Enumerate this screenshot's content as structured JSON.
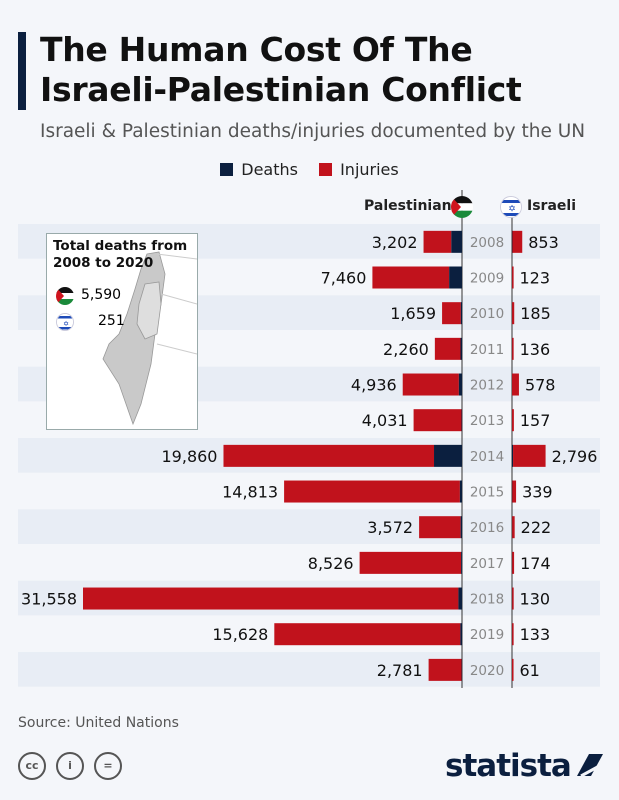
{
  "title": "The Human Cost Of The Israeli-Palestinian Conflict",
  "title_line1": "The Human Cost Of The",
  "title_line2": "Israeli-Palestinian Conflict",
  "subtitle": "Israeli & Palestinian deaths/injuries documented by the UN",
  "legend": {
    "deaths": "Deaths",
    "injuries": "Injuries"
  },
  "colors": {
    "deaths": "#0b1f3f",
    "injuries": "#c1121c",
    "band": "#e8edf5"
  },
  "headers": {
    "palestinian": "Palestinian",
    "israeli": "Israeli"
  },
  "inset": {
    "title_line1": "Total deaths from",
    "title_line2": "2008 to 2020",
    "palestinian_total": "5,590",
    "israeli_total": "251"
  },
  "chart_data": {
    "type": "bar",
    "orientation": "horizontal-diverging",
    "stacked": true,
    "categories": [
      "2008",
      "2009",
      "2010",
      "2011",
      "2012",
      "2013",
      "2014",
      "2015",
      "2016",
      "2017",
      "2018",
      "2019",
      "2020"
    ],
    "palestinian": {
      "labels": [
        "3,202",
        "7,460",
        "1,659",
        "2,260",
        "4,936",
        "4,031",
        "19,860",
        "14,813",
        "3,572",
        "8,526",
        "31,558",
        "15,628",
        "2,781"
      ],
      "total": [
        3202,
        7460,
        1659,
        2260,
        4936,
        4031,
        19860,
        14813,
        3572,
        8526,
        31558,
        15628,
        2781
      ],
      "deaths": [
        890,
        1070,
        95,
        125,
        260,
        40,
        2330,
        175,
        110,
        75,
        300,
        135,
        30
      ]
    },
    "israeli": {
      "labels": [
        "853",
        "123",
        "185",
        "136",
        "578",
        "157",
        "2,796",
        "339",
        "222",
        "174",
        "130",
        "133",
        "61"
      ],
      "total": [
        853,
        123,
        185,
        136,
        578,
        157,
        2796,
        339,
        222,
        174,
        130,
        133,
        61
      ],
      "deaths": [
        35,
        9,
        9,
        11,
        7,
        6,
        88,
        25,
        16,
        15,
        14,
        10,
        3
      ]
    }
  },
  "source": "Source: United Nations",
  "logo": "statista"
}
